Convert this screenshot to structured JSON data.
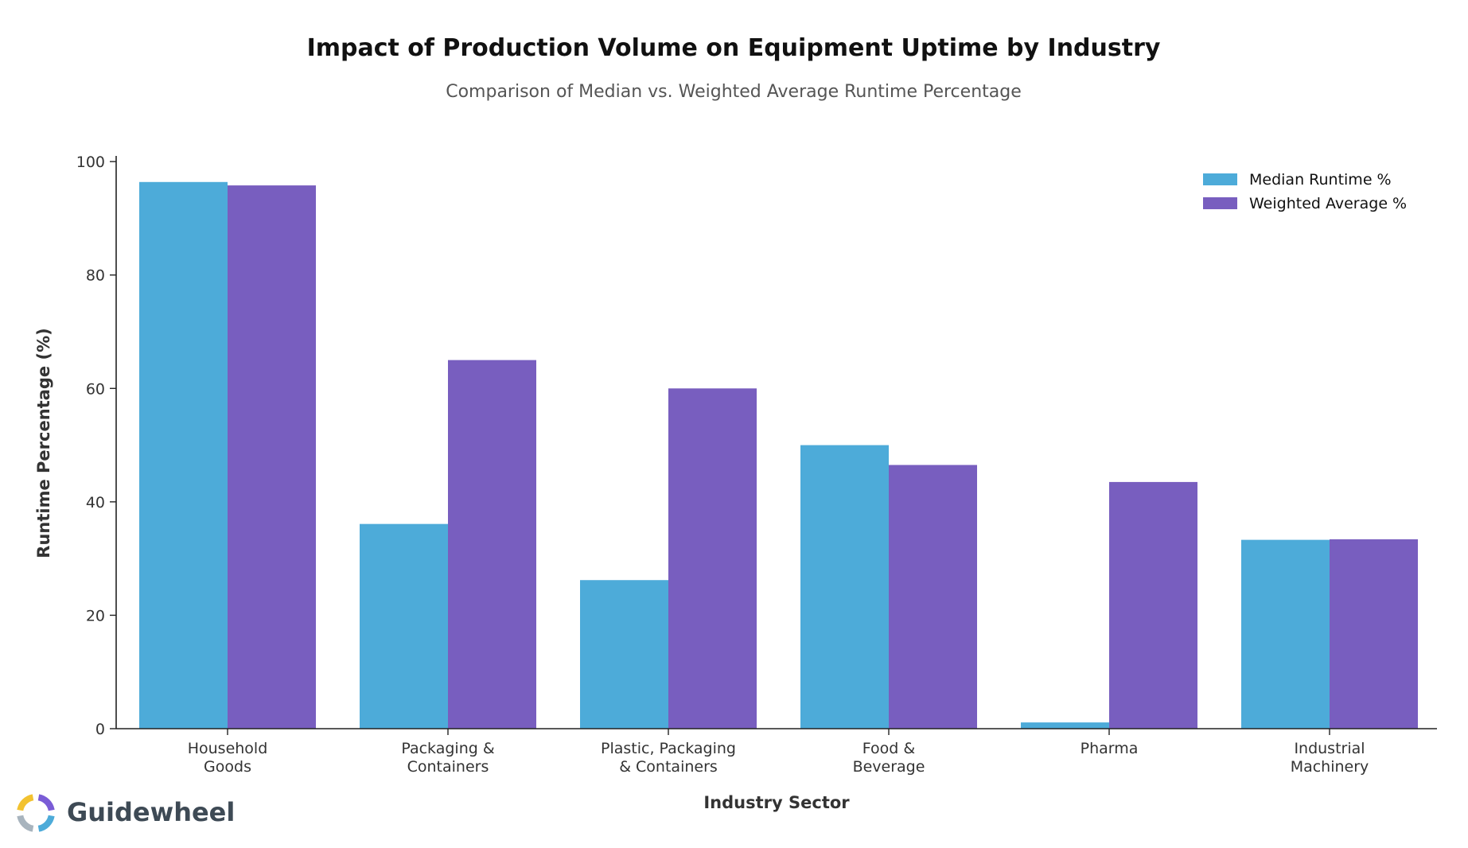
{
  "chart_data": {
    "type": "bar",
    "title": "Impact of Production Volume on Equipment Uptime by Industry",
    "subtitle": "Comparison of Median vs. Weighted Average Runtime Percentage",
    "xlabel": "Industry Sector",
    "ylabel": "Runtime Percentage (%)",
    "ylim": [
      0,
      101
    ],
    "yticks": [
      0,
      20,
      40,
      60,
      80,
      100
    ],
    "grid": false,
    "legend_position": "top-right",
    "categories": [
      [
        "Household",
        "Goods"
      ],
      [
        "Packaging &",
        "Containers"
      ],
      [
        "Plastic, Packaging",
        "& Containers"
      ],
      [
        "Food &",
        "Beverage"
      ],
      [
        "Pharma"
      ],
      [
        "Industrial",
        "Machinery"
      ]
    ],
    "series": [
      {
        "name": "Median Runtime %",
        "color": "#4DABD9",
        "values": [
          96.4,
          36.1,
          26.2,
          50.0,
          1.1,
          33.3
        ]
      },
      {
        "name": "Weighted Average %",
        "color": "#785EBF",
        "values": [
          95.8,
          65.0,
          60.0,
          46.5,
          43.5,
          33.4
        ]
      }
    ]
  },
  "branding": {
    "name": "Guidewheel",
    "text_color": "#3E4A55",
    "logo_colors": [
      "#F2C230",
      "#7A5CD6",
      "#4DABD9",
      "#A8B4BE"
    ]
  }
}
